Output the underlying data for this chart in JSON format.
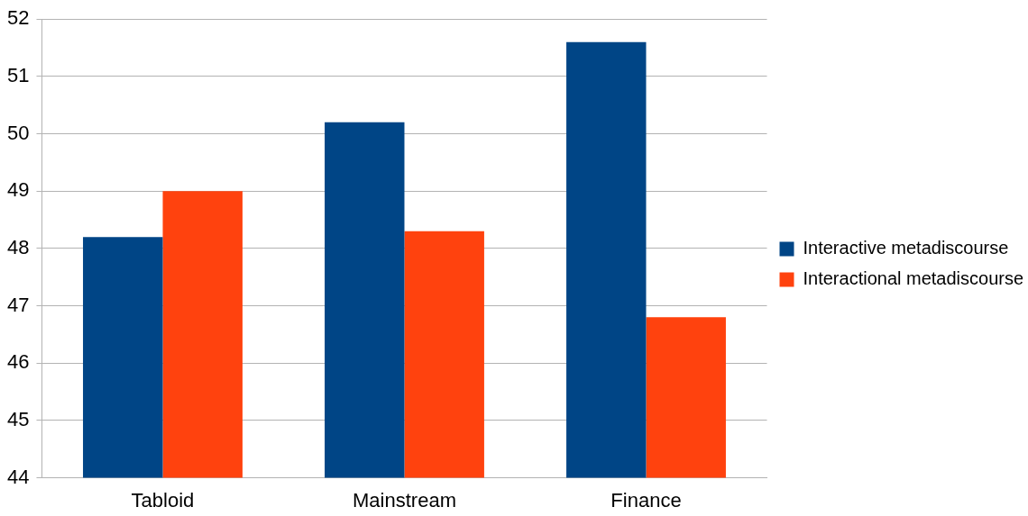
{
  "chart_data": {
    "type": "bar",
    "categories": [
      "Tabloid",
      "Mainstream",
      "Finance"
    ],
    "series": [
      {
        "name": "Interactive metadiscourse",
        "color": "#004586",
        "values": [
          48.2,
          50.2,
          51.6
        ]
      },
      {
        "name": "Interactional metadiscourse",
        "color": "#ff420e",
        "values": [
          49.0,
          48.3,
          46.8
        ]
      }
    ],
    "ylim": [
      44,
      52
    ],
    "yticks": [
      44,
      45,
      46,
      47,
      48,
      49,
      50,
      51,
      52
    ],
    "grid": "y",
    "legend": "right"
  }
}
